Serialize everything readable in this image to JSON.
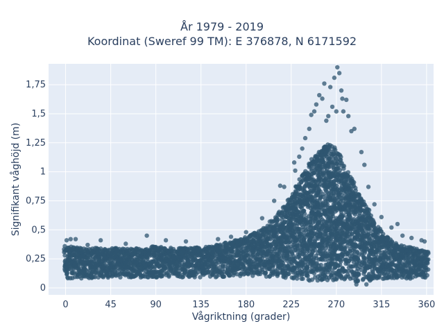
{
  "chart_data": {
    "type": "scatter",
    "title_lines": [
      "År 1979 - 2019",
      "Koordinat (Sweref 99 TM): E 376878, N 6171592"
    ],
    "xlabel": "Vågriktning (grader)",
    "ylabel": "Signifikant våghöjd (m)",
    "xlim": [
      -17,
      367
    ],
    "ylim": [
      -0.06,
      1.93
    ],
    "xticks": [
      0,
      45,
      90,
      135,
      180,
      225,
      270,
      315,
      360
    ],
    "xtick_labels": [
      "0",
      "45",
      "90",
      "135",
      "180",
      "225",
      "270",
      "315",
      "360"
    ],
    "yticks": [
      0,
      0.25,
      0.5,
      0.75,
      1,
      1.25,
      1.5,
      1.75
    ],
    "ytick_labels": [
      "0",
      "0,25",
      "0,5",
      "0,75",
      "1",
      "1,25",
      "1,5",
      "1,75"
    ],
    "grid": true,
    "colors": {
      "marker": "#2f5670",
      "plot_bg": "#e5ecf6",
      "grid": "#ffffff"
    },
    "envelope": {
      "description_x": [
        0,
        20,
        45,
        70,
        90,
        110,
        135,
        150,
        165,
        180,
        195,
        210,
        225,
        235,
        245,
        255,
        262,
        268,
        272,
        278,
        285,
        292,
        300,
        310,
        320,
        330,
        340,
        350,
        360
      ],
      "upper": [
        0.36,
        0.34,
        0.35,
        0.34,
        0.36,
        0.34,
        0.35,
        0.37,
        0.4,
        0.44,
        0.5,
        0.62,
        0.8,
        0.95,
        1.1,
        1.2,
        1.25,
        1.22,
        1.18,
        1.05,
        0.95,
        0.82,
        0.7,
        0.55,
        0.44,
        0.38,
        0.36,
        0.34,
        0.33
      ],
      "lower": [
        0.08,
        0.08,
        0.09,
        0.09,
        0.09,
        0.09,
        0.09,
        0.09,
        0.1,
        0.1,
        0.1,
        0.09,
        0.08,
        0.07,
        0.06,
        0.05,
        0.05,
        0.05,
        0.05,
        0.05,
        0.05,
        0.05,
        0.06,
        0.07,
        0.07,
        0.08,
        0.08,
        0.08,
        0.09
      ]
    },
    "outliers": [
      {
        "x": 1,
        "y": 0.41
      },
      {
        "x": 5,
        "y": 0.42
      },
      {
        "x": 10,
        "y": 0.42
      },
      {
        "x": 22,
        "y": 0.37
      },
      {
        "x": 35,
        "y": 0.41
      },
      {
        "x": 60,
        "y": 0.38
      },
      {
        "x": 81,
        "y": 0.45
      },
      {
        "x": 100,
        "y": 0.41
      },
      {
        "x": 120,
        "y": 0.4
      },
      {
        "x": 152,
        "y": 0.42
      },
      {
        "x": 165,
        "y": 0.44
      },
      {
        "x": 180,
        "y": 0.48
      },
      {
        "x": 196,
        "y": 0.6
      },
      {
        "x": 208,
        "y": 0.75
      },
      {
        "x": 214,
        "y": 0.88
      },
      {
        "x": 218,
        "y": 0.87
      },
      {
        "x": 228,
        "y": 1.08
      },
      {
        "x": 229,
        "y": 1.01
      },
      {
        "x": 233,
        "y": 1.13
      },
      {
        "x": 236,
        "y": 1.2
      },
      {
        "x": 239,
        "y": 1.29
      },
      {
        "x": 243,
        "y": 1.37
      },
      {
        "x": 245,
        "y": 1.49
      },
      {
        "x": 248,
        "y": 1.52
      },
      {
        "x": 250,
        "y": 1.58
      },
      {
        "x": 253,
        "y": 1.66
      },
      {
        "x": 256,
        "y": 1.63
      },
      {
        "x": 258,
        "y": 1.76
      },
      {
        "x": 260,
        "y": 1.44
      },
      {
        "x": 262,
        "y": 1.48
      },
      {
        "x": 264,
        "y": 1.73
      },
      {
        "x": 266,
        "y": 1.56
      },
      {
        "x": 268,
        "y": 1.81
      },
      {
        "x": 270,
        "y": 1.52
      },
      {
        "x": 271,
        "y": 1.9
      },
      {
        "x": 273,
        "y": 1.85
      },
      {
        "x": 275,
        "y": 1.7
      },
      {
        "x": 276,
        "y": 1.63
      },
      {
        "x": 277,
        "y": 1.52
      },
      {
        "x": 280,
        "y": 1.62
      },
      {
        "x": 282,
        "y": 1.48
      },
      {
        "x": 285,
        "y": 1.35
      },
      {
        "x": 288,
        "y": 1.37
      },
      {
        "x": 295,
        "y": 1.17
      },
      {
        "x": 298,
        "y": 1.06
      },
      {
        "x": 302,
        "y": 0.87
      },
      {
        "x": 308,
        "y": 0.72
      },
      {
        "x": 315,
        "y": 0.61
      },
      {
        "x": 325,
        "y": 0.52
      },
      {
        "x": 331,
        "y": 0.55
      },
      {
        "x": 336,
        "y": 0.45
      },
      {
        "x": 345,
        "y": 0.43
      },
      {
        "x": 355,
        "y": 0.41
      },
      {
        "x": 358,
        "y": 0.4
      },
      {
        "x": 290,
        "y": 0.03
      },
      {
        "x": 300,
        "y": 0.03
      }
    ]
  }
}
